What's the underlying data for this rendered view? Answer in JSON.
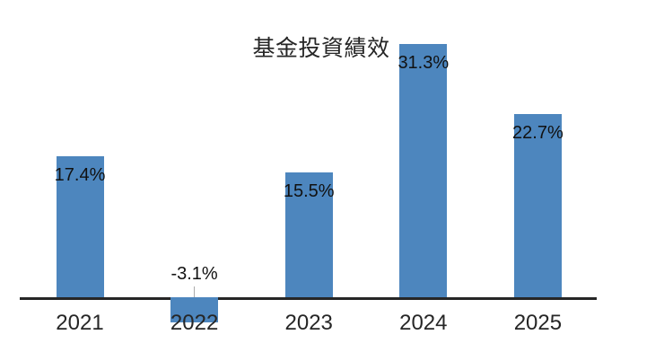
{
  "chart_data": {
    "type": "bar",
    "title": "基金投資績效",
    "categories": [
      "2021",
      "2022",
      "2023",
      "2024",
      "2025"
    ],
    "values": [
      17.4,
      -3.1,
      15.5,
      31.3,
      22.7
    ],
    "value_labels": [
      "17.4%",
      "-3.1%",
      "15.5%",
      "31.3%",
      "22.7%"
    ],
    "series_name": "",
    "xlabel": "",
    "ylabel": "",
    "ylim": [
      -5,
      35
    ],
    "grid": "off",
    "legend": "none",
    "label_position": "inside-end (outside for negative)",
    "bar_color": "#4d86be",
    "axis_color": "#262626",
    "text_color": "#111111",
    "background_color": "#ffffff"
  }
}
